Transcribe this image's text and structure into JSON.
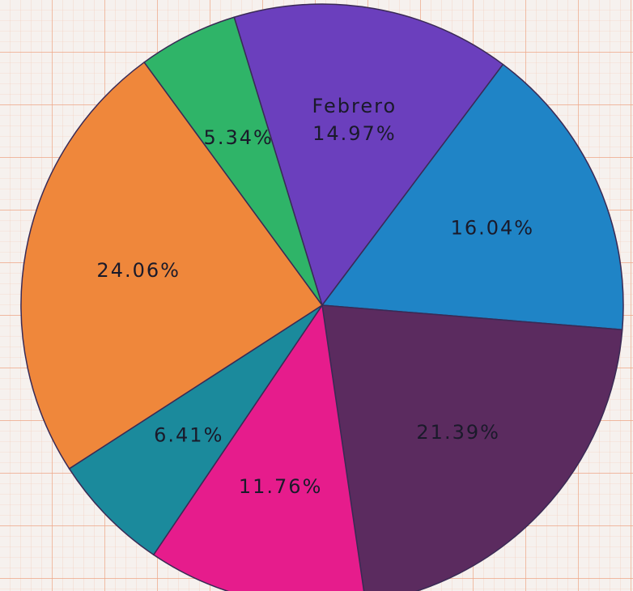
{
  "chart_data": {
    "type": "pie",
    "categories": [
      "Febrero",
      null,
      null,
      null,
      null,
      null,
      null
    ],
    "values": [
      14.97,
      16.04,
      21.39,
      11.76,
      6.41,
      24.06,
      5.34
    ],
    "value_labels": [
      "14.97%",
      "16.04%",
      "21.39%",
      "11.76%",
      "6.41%",
      "24.06%",
      "5.34%"
    ],
    "colors": [
      "#6b3fbd",
      "#1f84c6",
      "#5b2b5f",
      "#e61c8c",
      "#1b8a9c",
      "#ef873b",
      "#2fb468"
    ]
  }
}
